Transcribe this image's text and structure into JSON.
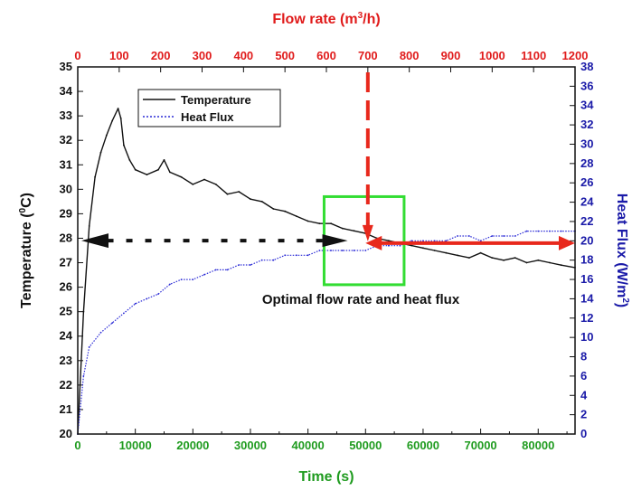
{
  "chart_data": {
    "type": "line",
    "xlabel": "Time (s)",
    "ylabel_prefix": "Temperature (",
    "ylabel_sup": "0",
    "ylabel_suffix": "C)",
    "y2label_prefix": "Heat Flux (W/m",
    "y2label_sup": "2",
    "y2label_suffix": ")",
    "x2label_prefix": "Flow rate (m",
    "x2label_sup": "3",
    "x2label_suffix": "/h)",
    "xlim": [
      0,
      86400
    ],
    "ylim": [
      20,
      35
    ],
    "y2lim": [
      0,
      38
    ],
    "x2lim": [
      0,
      1200
    ],
    "x_ticks": [
      0,
      10000,
      20000,
      30000,
      40000,
      50000,
      60000,
      70000,
      80000
    ],
    "y_ticks": [
      20,
      21,
      22,
      23,
      24,
      25,
      26,
      27,
      28,
      29,
      30,
      31,
      32,
      33,
      34,
      35
    ],
    "y2_ticks": [
      0,
      2,
      4,
      6,
      8,
      10,
      12,
      14,
      16,
      18,
      20,
      22,
      24,
      26,
      28,
      30,
      32,
      34,
      36,
      38
    ],
    "x2_ticks": [
      0,
      100,
      200,
      300,
      400,
      500,
      600,
      700,
      800,
      900,
      1000,
      1100,
      1200
    ],
    "series": [
      {
        "name": "Temperature",
        "axis": "left",
        "color": "#111111",
        "style": "solid",
        "x": [
          0,
          1000,
          2000,
          3000,
          4000,
          5000,
          6000,
          7000,
          7500,
          8000,
          9000,
          10000,
          12000,
          14000,
          15000,
          16000,
          18000,
          20000,
          22000,
          24000,
          26000,
          28000,
          30000,
          32000,
          34000,
          36000,
          38000,
          40000,
          42000,
          44000,
          46000,
          48000,
          50000,
          52000,
          54000,
          56000,
          58000,
          60000,
          62000,
          64000,
          66000,
          68000,
          70000,
          72000,
          74000,
          76000,
          78000,
          80000,
          82000,
          84000,
          86400
        ],
        "values": [
          20,
          25,
          28.5,
          30.5,
          31.5,
          32.2,
          32.8,
          33.3,
          32.9,
          31.8,
          31.2,
          30.8,
          30.6,
          30.8,
          31.2,
          30.7,
          30.5,
          30.2,
          30.4,
          30.2,
          29.8,
          29.9,
          29.6,
          29.5,
          29.2,
          29.1,
          28.9,
          28.7,
          28.6,
          28.6,
          28.4,
          28.3,
          28.2,
          28.0,
          27.9,
          27.8,
          27.7,
          27.6,
          27.5,
          27.4,
          27.3,
          27.2,
          27.4,
          27.2,
          27.1,
          27.2,
          27.0,
          27.1,
          27.0,
          26.9,
          26.8
        ]
      },
      {
        "name": "Heat Flux",
        "axis": "right",
        "color": "#2b2bd6",
        "style": "dotted",
        "x": [
          0,
          1000,
          2000,
          4000,
          6000,
          8000,
          10000,
          12000,
          14000,
          16000,
          18000,
          20000,
          22000,
          24000,
          26000,
          28000,
          30000,
          32000,
          34000,
          36000,
          38000,
          40000,
          42000,
          44000,
          46000,
          48000,
          50000,
          52000,
          54000,
          56000,
          58000,
          60000,
          62000,
          64000,
          66000,
          68000,
          70000,
          72000,
          74000,
          76000,
          78000,
          80000,
          82000,
          84000,
          86400
        ],
        "values": [
          0,
          6,
          9,
          10.5,
          11.5,
          12.5,
          13.5,
          14,
          14.5,
          15.5,
          16,
          16,
          16.5,
          17,
          17,
          17.5,
          17.5,
          18,
          18,
          18.5,
          18.5,
          18.5,
          19,
          19,
          19,
          19,
          19,
          19.5,
          19.5,
          19.5,
          20,
          20,
          20,
          20,
          20.5,
          20.5,
          20,
          20.5,
          20.5,
          20.5,
          21,
          21,
          21,
          21,
          21
        ]
      }
    ],
    "annotation_text": "Optimal flow rate and heat flux",
    "optimal_box": {
      "x_from": 42800,
      "x_to": 56700,
      "y_from": 26.1,
      "y_to": 29.7
    },
    "black_arrow": {
      "x_from": 42500,
      "x_to": 0,
      "y": 27.9
    },
    "red_arrow": {
      "x_from": 50000,
      "x_to": 86400,
      "y": 27.8,
      "top_x2": 700
    },
    "legend_position": "upper-left"
  },
  "colors": {
    "left_axis": "#111111",
    "right_axis": "#1a1aa8",
    "top_axis": "#e01b1b",
    "bottom_axis": "#1f9b1f",
    "optimal_box": "#33dd33",
    "red_arrow": "#e8281c"
  }
}
